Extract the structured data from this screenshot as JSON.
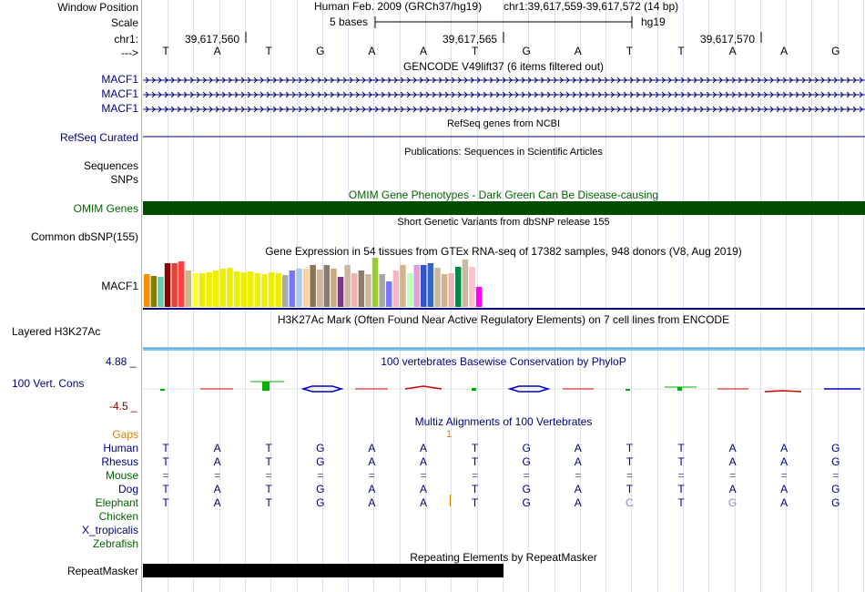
{
  "position": {
    "label_window": "Window Position",
    "label_scale": "Scale",
    "label_chr": "chr1:",
    "label_arrow": "--->",
    "title": "Human Feb. 2009 (GRCh37/hg19)",
    "coords": "chr1:39,617,559-39,617,572 (14 bp)",
    "scale_text": "5 bases",
    "assembly": "hg19",
    "ticks": [
      "39,617,560",
      "39,617,565",
      "39,617,570"
    ]
  },
  "bases": [
    "T",
    "A",
    "T",
    "G",
    "A",
    "A",
    "T",
    "G",
    "A",
    "T",
    "T",
    "A",
    "A",
    "G"
  ],
  "tracks": {
    "gencode": {
      "title": "GENCODE V49lift37 (6 items filtered out)",
      "items": [
        "MACF1",
        "MACF1",
        "MACF1"
      ]
    },
    "refseq": {
      "title": "RefSeq genes from NCBI",
      "label": "RefSeq Curated"
    },
    "pubs": {
      "title": "Publications: Sequences in Scientific Articles",
      "labels": [
        "Sequences",
        "SNPs"
      ]
    },
    "omim": {
      "title": "OMIM Gene Phenotypes - Dark Green Can Be Disease-causing",
      "label": "OMIM Genes",
      "color": "#004d00"
    },
    "dbsnp": {
      "title": "Short Genetic Variants from dbSNP release 155",
      "label": "Common dbSNP(155)"
    },
    "gtex": {
      "title": "Gene Expression in 54 tissues from GTEx RNA-seq of 17382 samples, 948 donors (V8, Aug 2019)",
      "label": "MACF1"
    },
    "h3k27ac": {
      "title": "H3K27Ac Mark (Often Found Near Active Regulatory Elements) on 7 cell lines from ENCODE",
      "label": "Layered H3K27Ac"
    },
    "phylop": {
      "title": "100 vertebrates Basewise Conservation by PhyloP",
      "label": "100 Vert. Cons",
      "max": "4.88 _",
      "min": "-4.5 _"
    },
    "multiz": {
      "title": "Multiz Alignments of 100 Vertebrates",
      "gaps_label": "Gaps",
      "gap_count": "1",
      "species": [
        {
          "name": "Human",
          "seq": [
            "T",
            "A",
            "T",
            "G",
            "A",
            "A",
            "T",
            "G",
            "A",
            "T",
            "T",
            "A",
            "A",
            "G"
          ]
        },
        {
          "name": "Rhesus",
          "seq": [
            "T",
            "A",
            "T",
            "G",
            "A",
            "A",
            "T",
            "G",
            "A",
            "T",
            "T",
            "A",
            "A",
            "G"
          ]
        },
        {
          "name": "Mouse",
          "seq": [
            "=",
            "=",
            "=",
            "=",
            "=",
            "=",
            "=",
            "=",
            "=",
            "=",
            "=",
            "=",
            "=",
            "="
          ]
        },
        {
          "name": "Dog",
          "seq": [
            "T",
            "A",
            "T",
            "G",
            "A",
            "A",
            "T",
            "G",
            "A",
            "T",
            "T",
            "A",
            "A",
            "G"
          ]
        },
        {
          "name": "Elephant",
          "seq": [
            "T",
            "A",
            "T",
            "G",
            "A",
            "A",
            "T",
            "G",
            "A",
            "C",
            "T",
            "G",
            "A",
            "G"
          ]
        },
        {
          "name": "Chicken",
          "seq": []
        },
        {
          "name": "X_tropicalis",
          "seq": []
        },
        {
          "name": "Zebrafish",
          "seq": []
        }
      ]
    },
    "repeatmasker": {
      "title": "Repeating Elements by RepeatMasker",
      "label": "RepeatMasker"
    }
  },
  "colors": {
    "label_blue": "#000080",
    "label_green": "#006400",
    "gaps_orange": "#d08000",
    "phylop_pos": "#00b000",
    "phylop_neg": "#d00000",
    "h3k27ac": "#80c8f0"
  }
}
